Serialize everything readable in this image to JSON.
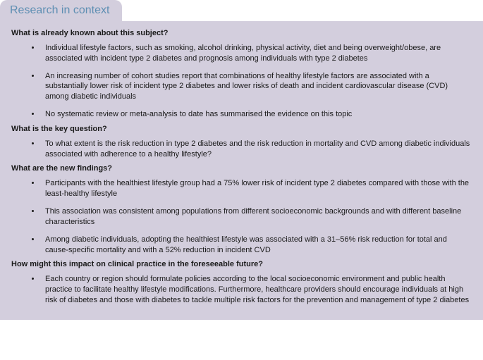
{
  "panel": {
    "tab_title": "Research in context",
    "sections": [
      {
        "title": "What is already known about this subject?",
        "bullets": [
          "Individual lifestyle factors, such as smoking, alcohol drinking, physical activity, diet and being overweight/obese, are associated with incident type 2 diabetes and prognosis among individuals with type 2 diabetes",
          "An increasing number of cohort studies report that combinations of healthy lifestyle factors are associated with a substantially lower risk of incident type 2 diabetes and lower risks of death and incident cardiovascular disease (CVD) among diabetic individuals",
          "No systematic review or meta-analysis to date has summarised the evidence on this topic"
        ]
      },
      {
        "title": "What is the key question?",
        "bullets": [
          "To what extent is the risk reduction in type 2 diabetes and the risk reduction in mortality and CVD among diabetic individuals associated with adherence to a healthy lifestyle?"
        ]
      },
      {
        "title": "What are the new findings?",
        "bullets": [
          "Participants with the healthiest lifestyle group had a 75% lower risk of incident type 2 diabetes compared with those with the least-healthy lifestyle",
          "This association was consistent among populations from different socioeconomic backgrounds and with different baseline characteristics",
          "Among diabetic individuals, adopting the healthiest lifestyle was associated with a 31–56% risk reduction for total and cause-specific mortality and with a 52% reduction in incident CVD"
        ]
      },
      {
        "title": "How might this impact on clinical practice in the foreseeable future?",
        "bullets": [
          "Each country or region should formulate policies according to the local socioeconomic environment and public health practice to facilitate healthy lifestyle modifications. Furthermore, healthcare providers should encourage individuals at high risk of diabetes and those with diabetes to tackle multiple risk factors for the prevention and management of type 2 diabetes"
        ]
      }
    ]
  },
  "colors": {
    "panel_bg": "#d3cedd",
    "tab_text": "#5f8fb3",
    "body_text": "#1a1a1a"
  }
}
